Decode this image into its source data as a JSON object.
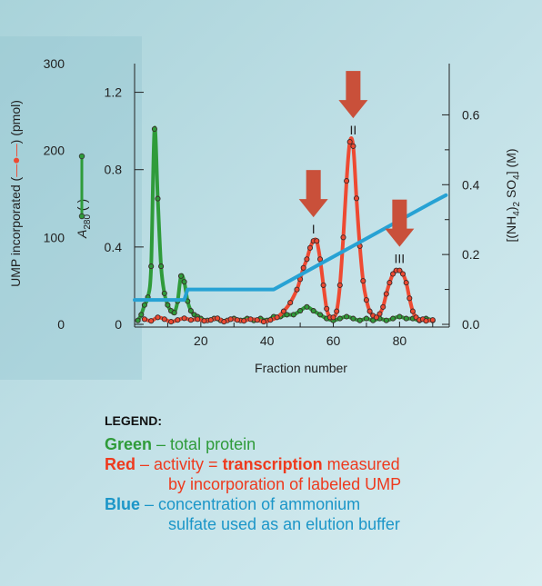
{
  "chart_data": {
    "type": "line",
    "xlabel": "Fraction number",
    "x_ticks": [
      20,
      40,
      60,
      80
    ],
    "xlim": [
      0,
      95
    ],
    "left_outer_axis": {
      "label_prefix": "UMP incorporated (",
      "label_suffix": ") (pmol)",
      "ticks": [
        "300",
        "200",
        "100",
        "0"
      ],
      "ylim": [
        0,
        300
      ]
    },
    "left_inner_axis": {
      "label_main": "A",
      "label_sub": "280",
      "label_suffix": " (",
      "label_close": ")",
      "ticks": [
        "1.2",
        "0.8",
        "0.4",
        "0"
      ],
      "ylim": [
        0,
        1.4
      ]
    },
    "right_axis": {
      "label": "[(NH4)2 SO4] (M)",
      "label_parts": [
        "[(NH",
        "4",
        ")",
        "2",
        " SO",
        "4",
        "] (M)"
      ],
      "ticks": [
        "0.6",
        "0.4",
        "0.2",
        "0.0"
      ],
      "ylim": [
        0,
        0.7
      ]
    },
    "peak_labels": [
      {
        "text": "I",
        "x": 54
      },
      {
        "text": "II",
        "x": 66
      },
      {
        "text": "III",
        "x": 80
      }
    ],
    "series": [
      {
        "name": "Green",
        "axis": "left_inner",
        "color": "#2f9b3a",
        "x": [
          1,
          2,
          3,
          4,
          5,
          6,
          7,
          8,
          9,
          10,
          11,
          12,
          13,
          14,
          15,
          16,
          17,
          18,
          19,
          20,
          22,
          24,
          26,
          28,
          30,
          32,
          34,
          36,
          38,
          40,
          42,
          44,
          46,
          48,
          50,
          52,
          54,
          56,
          58,
          60,
          62,
          64,
          66,
          68,
          70,
          72,
          74,
          76,
          78,
          80,
          82,
          84,
          86,
          88,
          90
        ],
        "y": [
          0.02,
          0.05,
          0.1,
          0.14,
          0.3,
          1.01,
          0.65,
          0.3,
          0.16,
          0.1,
          0.07,
          0.06,
          0.12,
          0.25,
          0.22,
          0.12,
          0.07,
          0.05,
          0.04,
          0.03,
          0.02,
          0.03,
          0.02,
          0.02,
          0.03,
          0.02,
          0.03,
          0.02,
          0.03,
          0.02,
          0.04,
          0.04,
          0.05,
          0.05,
          0.07,
          0.09,
          0.07,
          0.05,
          0.03,
          0.02,
          0.03,
          0.04,
          0.03,
          0.02,
          0.03,
          0.02,
          0.03,
          0.02,
          0.03,
          0.04,
          0.03,
          0.03,
          0.02,
          0.03,
          0.02
        ]
      },
      {
        "name": "Red",
        "axis": "left_outer",
        "color": "#ee4a32",
        "x": [
          3,
          5,
          7,
          9,
          11,
          13,
          15,
          17,
          19,
          21,
          23,
          25,
          27,
          29,
          31,
          33,
          35,
          37,
          39,
          41,
          43,
          45,
          47,
          49,
          50,
          51,
          52,
          53,
          54,
          55,
          56,
          57,
          58,
          59,
          60,
          61,
          62,
          63,
          64,
          65,
          66,
          67,
          68,
          69,
          70,
          71,
          72,
          73,
          74,
          75,
          76,
          77,
          78,
          79,
          80,
          81,
          82,
          83,
          84,
          85,
          86,
          87,
          88,
          90
        ],
        "y": [
          6,
          4,
          8,
          6,
          3,
          5,
          7,
          5,
          6,
          4,
          5,
          7,
          3,
          6,
          5,
          4,
          6,
          5,
          3,
          5,
          8,
          15,
          25,
          40,
          52,
          65,
          75,
          88,
          96,
          96,
          75,
          45,
          18,
          8,
          8,
          15,
          45,
          100,
          165,
          210,
          205,
          145,
          90,
          50,
          28,
          15,
          10,
          8,
          12,
          20,
          35,
          48,
          58,
          62,
          62,
          58,
          48,
          30,
          15,
          8,
          5,
          6,
          4,
          5
        ]
      },
      {
        "name": "Blue",
        "axis": "right",
        "color": "#27a2d4",
        "x": [
          0,
          15,
          16,
          42,
          90,
          94
        ],
        "y": [
          0.07,
          0.07,
          0.1,
          0.1,
          0.35,
          0.37
        ]
      }
    ]
  },
  "legend": {
    "heading": "LEGEND:",
    "green_key": "Green",
    "green_text": " – total protein",
    "red_key": "Red",
    "red_text1": " – activity = ",
    "red_bold": "transcription",
    "red_text2": " measured",
    "red_line2": "by incorporation of labeled UMP",
    "blue_key": "Blue",
    "blue_text": " – concentration of ammonium",
    "blue_line2": "sulfate used as an elution buffer"
  },
  "colors": {
    "green": "#2f9b3a",
    "red": "#ee3a1e",
    "blue": "#1c96c8",
    "arrow": "#c9503a"
  }
}
